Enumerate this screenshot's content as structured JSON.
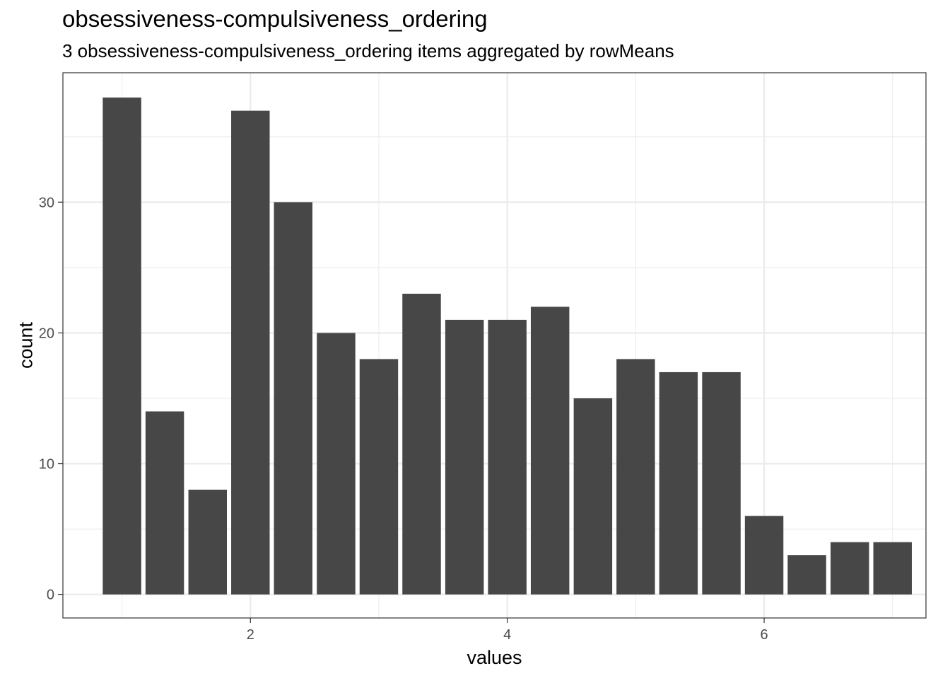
{
  "chart_data": {
    "type": "bar",
    "title": "obsessiveness-compulsiveness_ordering",
    "subtitle": "3 obsessiveness-compulsiveness_ordering items aggregated by rowMeans",
    "xlabel": "values",
    "ylabel": "count",
    "x": [
      1.0,
      1.333,
      1.667,
      2.0,
      2.333,
      2.667,
      3.0,
      3.333,
      3.667,
      4.0,
      4.333,
      4.667,
      5.0,
      5.333,
      5.667,
      6.0,
      6.333,
      6.667,
      7.0
    ],
    "values": [
      38,
      14,
      8,
      37,
      30,
      20,
      18,
      23,
      21,
      21,
      22,
      15,
      18,
      17,
      17,
      6,
      3,
      4,
      4
    ],
    "xlim": [
      0.54,
      7.26
    ],
    "ylim": [
      -1.8,
      39.9
    ],
    "x_ticks": [
      2,
      4,
      6
    ],
    "x_tick_labels": [
      "2",
      "4",
      "6"
    ],
    "y_ticks": [
      0,
      10,
      20,
      30
    ],
    "y_tick_labels": [
      "0",
      "10",
      "20",
      "30"
    ],
    "grid": true,
    "bar_color": "#474747",
    "panel_border_color": "#333333",
    "grid_color": "#ebebeb"
  }
}
